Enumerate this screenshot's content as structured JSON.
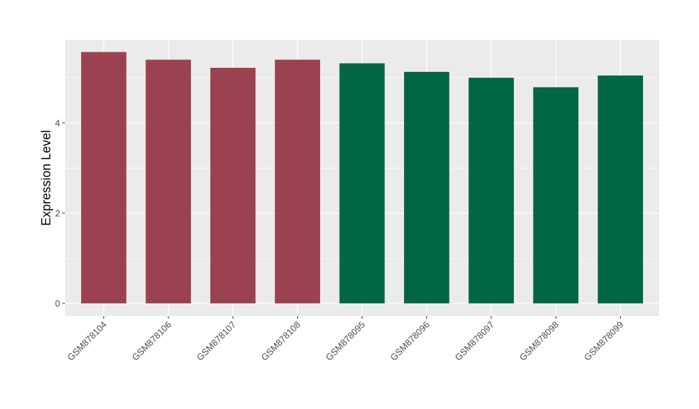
{
  "chart_data": {
    "type": "bar",
    "title": "",
    "xlabel": "",
    "ylabel": "Expression Level",
    "categories": [
      "GSM878104",
      "GSM878106",
      "GSM878107",
      "GSM878108",
      "GSM878095",
      "GSM878096",
      "GSM878097",
      "GSM878098",
      "GSM878099"
    ],
    "values": [
      5.57,
      5.4,
      5.22,
      5.4,
      5.32,
      5.13,
      5.0,
      4.79,
      5.05
    ],
    "groups": [
      0,
      0,
      0,
      0,
      1,
      1,
      1,
      1,
      1
    ],
    "group_colors": [
      "#9B4250",
      "#006644"
    ],
    "ylim": [
      -0.28,
      5.84
    ],
    "yticks": [
      0,
      2,
      4
    ],
    "grid": true,
    "panel_background": "#EBEBEB",
    "legend": "none"
  }
}
